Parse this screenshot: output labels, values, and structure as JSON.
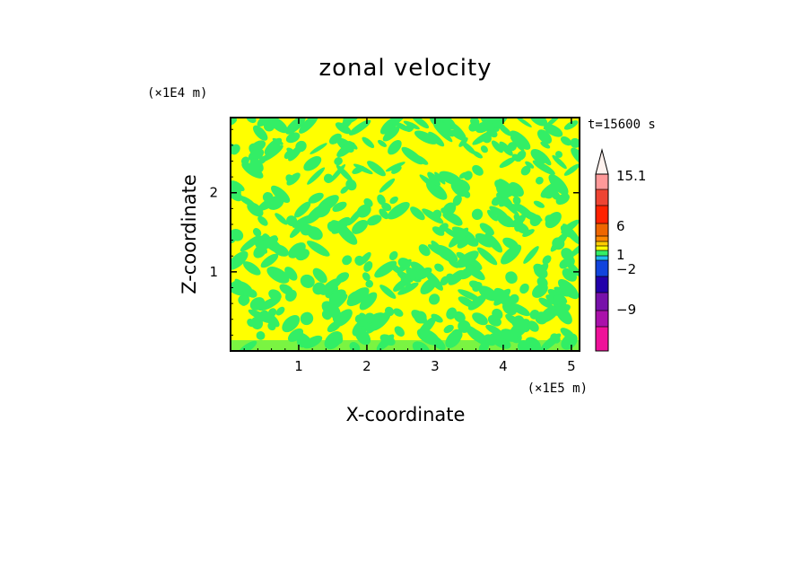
{
  "chart_data": {
    "type": "heatmap",
    "title": "zonal velocity",
    "xlabel": "X-coordinate",
    "ylabel": "Z-coordinate",
    "x_unit": "(×1E5 m)",
    "y_unit": "(×1E4 m)",
    "time_label": "t=15600 s",
    "xlim": [
      0,
      5.12
    ],
    "ylim": [
      0,
      2.95
    ],
    "x_ticks": [
      "1",
      "2",
      "3",
      "4",
      "5"
    ],
    "x_tick_values": [
      1,
      2,
      3,
      4,
      5
    ],
    "y_ticks": [
      "1",
      "2"
    ],
    "y_tick_values": [
      1,
      2
    ],
    "field_colors": {
      "positive": "#ffff00",
      "negative": "#33ee66"
    },
    "colorbar": {
      "levels": [
        {
          "color": "#ee1199"
        },
        {
          "color": "#aa11aa"
        },
        {
          "color": "#7711aa"
        },
        {
          "color": "#2200aa"
        },
        {
          "color": "#1144dd"
        },
        {
          "color": "#22bbee"
        },
        {
          "color": "#33ee66"
        },
        {
          "color": "#ffff00"
        },
        {
          "color": "#ffcc00"
        },
        {
          "color": "#ff8800"
        },
        {
          "color": "#ee6600"
        },
        {
          "color": "#ff2200"
        },
        {
          "color": "#ee4433"
        },
        {
          "color": "#ff9999"
        },
        {
          "color": "#ffbbbb"
        }
      ],
      "labels": [
        {
          "text": "15.1",
          "value": 15.1
        },
        {
          "text": "6",
          "value": 6
        },
        {
          "text": "1",
          "value": 1
        },
        {
          "text": "−2",
          "value": -2
        },
        {
          "text": "−9",
          "value": -9
        }
      ],
      "overflow_arrow": true
    }
  }
}
